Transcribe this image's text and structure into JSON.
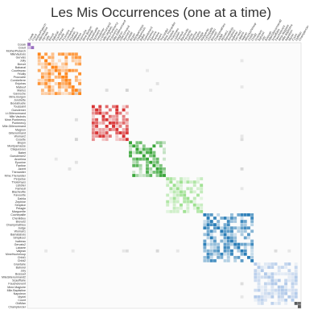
{
  "chart_data": {
    "type": "heatmap",
    "title": "Les Mis Occurrences (one at a time)",
    "xlabel": "",
    "ylabel": "",
    "grid": false,
    "labels": [
      "Cosak",
      "Cravit",
      "MotherPlutarch",
      "MlleVaubois",
      "Gervais",
      "Jolly",
      "Brevet",
      "Babanal",
      "Courfeyrac",
      "Feuilly",
      "Prouvaire",
      "Combeferre",
      "Enjolras",
      "Mabeuf",
      "Marius",
      "Gavroche",
      "Mme.Burgon",
      "Jondrette",
      "Boulatruelle",
      "Toussaint",
      "Gueulemer",
      "Lt.Gillenormand",
      "Mlle.Vaubois",
      "Mme.Pontmercy",
      "Pontmercy",
      "Mlle.Gillenormand",
      "Magnon",
      "Gillenormand",
      "Woman2",
      "Cosette",
      "Brujon",
      "Montparnasse",
      "Claquesous",
      "Babet",
      "Gueulemer2",
      "Anzelma",
      "Eponine",
      "Fantine",
      "Javert",
      "Thenardier",
      "Mme.Thenardier",
      "Perpetue",
      "Tholomyes",
      "Listolier",
      "Fameuil",
      "Blacheville",
      "Favourite",
      "Dahlia",
      "Zephine",
      "Simplice",
      "Pelagie",
      "Marguerite",
      "Cochepaille",
      "Chenildieu",
      "Brevet2",
      "Champmathieu",
      "Judge",
      "Woman1",
      "Bamatabois",
      "Simplice2",
      "Isabeau",
      "Gervais2",
      "Labarre",
      "Valjean",
      "MmeHucheloup",
      "Child1",
      "Child2",
      "Grantaire",
      "Bahorel",
      "Joly",
      "Bossuet",
      "MlleGillenormand2",
      "Scaufflaire",
      "Fauchelevent",
      "Mme.Magloire",
      "Mlle.Baptistine",
      "Napoleon",
      "Myriel",
      "Count",
      "OldMan",
      "Champtercier"
    ],
    "groups": [
      {
        "start": 0,
        "end": 1,
        "color": "#9467bd"
      },
      {
        "start": 3,
        "end": 15,
        "color": "#ff7f0e"
      },
      {
        "start": 19,
        "end": 29,
        "color": "#d62728"
      },
      {
        "start": 30,
        "end": 40,
        "color": "#2ca02c"
      },
      {
        "start": 41,
        "end": 51,
        "color": "#98df8a"
      },
      {
        "start": 52,
        "end": 66,
        "color": "#1f77b4"
      },
      {
        "start": 67,
        "end": 79,
        "color": "#aec7e8"
      },
      {
        "start": 79,
        "end": 80,
        "color": "#555555"
      }
    ],
    "cross_links": [
      {
        "i": 14,
        "j": 23,
        "value": 0.3
      },
      {
        "i": 14,
        "j": 29,
        "value": 0.4
      },
      {
        "i": 8,
        "j": 35,
        "value": 0.2
      },
      {
        "i": 12,
        "j": 38,
        "value": 0.25
      },
      {
        "i": 63,
        "j": 29,
        "value": 0.3
      },
      {
        "i": 63,
        "j": 38,
        "value": 0.35
      },
      {
        "i": 63,
        "j": 13,
        "value": 0.2
      },
      {
        "i": 63,
        "j": 5,
        "value": 0.2
      },
      {
        "i": 63,
        "j": 44,
        "value": 0.2
      },
      {
        "i": 73,
        "j": 63,
        "value": 0.3
      },
      {
        "i": 77,
        "j": 63,
        "value": 0.2
      },
      {
        "i": 14,
        "j": 15,
        "value": 0.3
      },
      {
        "i": 28,
        "j": 63,
        "value": 0.2
      },
      {
        "i": 36,
        "j": 14,
        "value": 0.25
      }
    ]
  }
}
